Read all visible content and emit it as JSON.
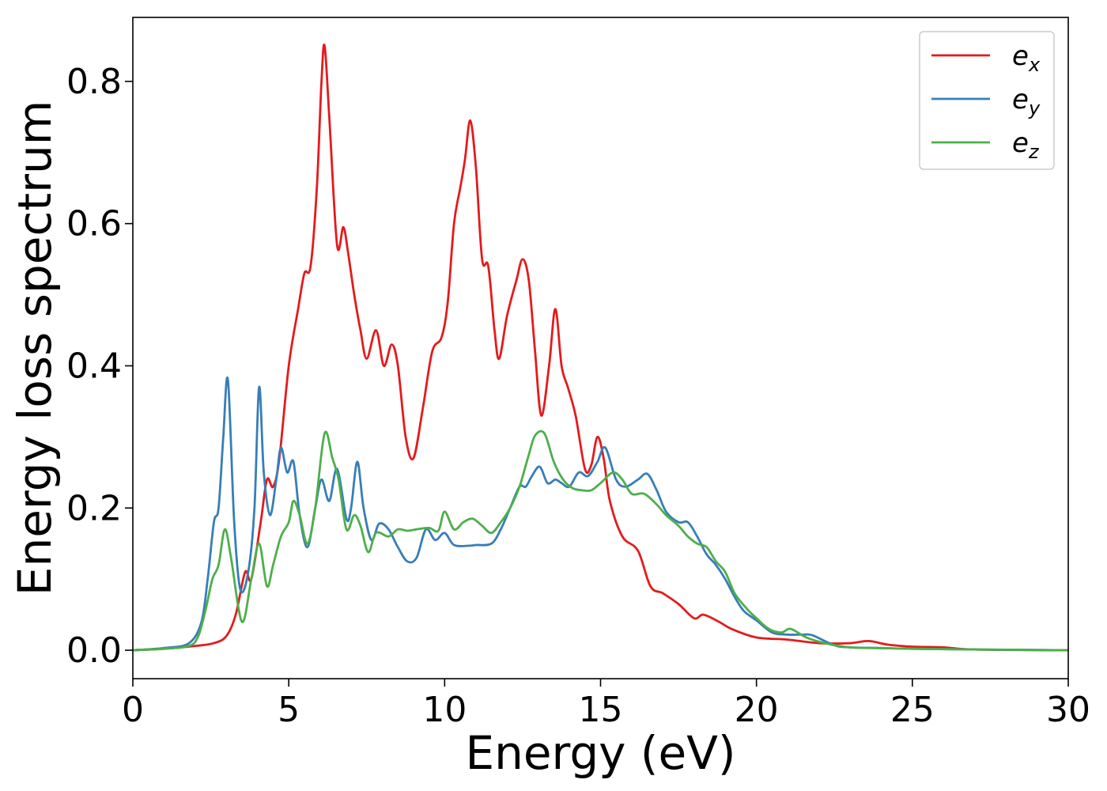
{
  "chart_data": {
    "type": "line",
    "title": "",
    "xlabel": "Energy (eV)",
    "ylabel": "Energy loss spectrum",
    "xlim": [
      0,
      30
    ],
    "ylim": [
      -0.04,
      0.89
    ],
    "xticks": [
      0,
      5,
      10,
      15,
      20,
      25,
      30
    ],
    "xtick_labels": [
      "0",
      "5",
      "10",
      "15",
      "20",
      "25",
      "30"
    ],
    "yticks": [
      0.0,
      0.2,
      0.4,
      0.6,
      0.8
    ],
    "ytick_labels": [
      "0.0",
      "0.2",
      "0.4",
      "0.6",
      "0.8"
    ],
    "grid": false,
    "legend_position": "top-right",
    "series": [
      {
        "name": "e",
        "sub": "x",
        "color": "#e41a1c",
        "points": [
          [
            0,
            0
          ],
          [
            1,
            0.002
          ],
          [
            2,
            0.006
          ],
          [
            2.6,
            0.01
          ],
          [
            3,
            0.02
          ],
          [
            3.3,
            0.05
          ],
          [
            3.6,
            0.11
          ],
          [
            3.8,
            0.1
          ],
          [
            4.1,
            0.18
          ],
          [
            4.3,
            0.24
          ],
          [
            4.5,
            0.23
          ],
          [
            4.7,
            0.27
          ],
          [
            5,
            0.4
          ],
          [
            5.3,
            0.48
          ],
          [
            5.5,
            0.53
          ],
          [
            5.7,
            0.54
          ],
          [
            5.9,
            0.65
          ],
          [
            6.05,
            0.8
          ],
          [
            6.15,
            0.85
          ],
          [
            6.3,
            0.75
          ],
          [
            6.55,
            0.57
          ],
          [
            6.75,
            0.595
          ],
          [
            6.9,
            0.56
          ],
          [
            7.1,
            0.5
          ],
          [
            7.3,
            0.45
          ],
          [
            7.5,
            0.41
          ],
          [
            7.8,
            0.45
          ],
          [
            8.05,
            0.4
          ],
          [
            8.3,
            0.43
          ],
          [
            8.5,
            0.4
          ],
          [
            8.75,
            0.3
          ],
          [
            9,
            0.27
          ],
          [
            9.3,
            0.34
          ],
          [
            9.6,
            0.42
          ],
          [
            9.9,
            0.44
          ],
          [
            10.1,
            0.49
          ],
          [
            10.3,
            0.6
          ],
          [
            10.5,
            0.65
          ],
          [
            10.65,
            0.69
          ],
          [
            10.82,
            0.745
          ],
          [
            11,
            0.68
          ],
          [
            11.2,
            0.55
          ],
          [
            11.4,
            0.54
          ],
          [
            11.6,
            0.45
          ],
          [
            11.75,
            0.41
          ],
          [
            12,
            0.47
          ],
          [
            12.3,
            0.52
          ],
          [
            12.5,
            0.55
          ],
          [
            12.7,
            0.52
          ],
          [
            12.9,
            0.42
          ],
          [
            13.1,
            0.33
          ],
          [
            13.35,
            0.4
          ],
          [
            13.55,
            0.48
          ],
          [
            13.75,
            0.4
          ],
          [
            13.95,
            0.37
          ],
          [
            14.2,
            0.33
          ],
          [
            14.5,
            0.255
          ],
          [
            14.7,
            0.26
          ],
          [
            14.9,
            0.3
          ],
          [
            15.1,
            0.27
          ],
          [
            15.3,
            0.21
          ],
          [
            15.7,
            0.16
          ],
          [
            16.2,
            0.14
          ],
          [
            16.6,
            0.09
          ],
          [
            17,
            0.08
          ],
          [
            17.5,
            0.065
          ],
          [
            18,
            0.045
          ],
          [
            18.3,
            0.05
          ],
          [
            18.8,
            0.04
          ],
          [
            19.2,
            0.03
          ],
          [
            20,
            0.018
          ],
          [
            21,
            0.015
          ],
          [
            22,
            0.01
          ],
          [
            23,
            0.01
          ],
          [
            23.6,
            0.013
          ],
          [
            24.2,
            0.008
          ],
          [
            25,
            0.005
          ],
          [
            26,
            0.004
          ],
          [
            27,
            0.001
          ],
          [
            30,
            0
          ]
        ]
      },
      {
        "name": "e",
        "sub": "y",
        "color": "#377eb8",
        "points": [
          [
            0,
            0
          ],
          [
            1,
            0.003
          ],
          [
            1.8,
            0.01
          ],
          [
            2.2,
            0.04
          ],
          [
            2.4,
            0.1
          ],
          [
            2.6,
            0.18
          ],
          [
            2.75,
            0.2
          ],
          [
            2.9,
            0.3
          ],
          [
            3.05,
            0.38
          ],
          [
            3.25,
            0.18
          ],
          [
            3.45,
            0.085
          ],
          [
            3.7,
            0.11
          ],
          [
            3.9,
            0.2
          ],
          [
            4.05,
            0.37
          ],
          [
            4.2,
            0.25
          ],
          [
            4.4,
            0.19
          ],
          [
            4.6,
            0.24
          ],
          [
            4.75,
            0.285
          ],
          [
            4.95,
            0.25
          ],
          [
            5.15,
            0.265
          ],
          [
            5.35,
            0.19
          ],
          [
            5.6,
            0.145
          ],
          [
            5.85,
            0.2
          ],
          [
            6.05,
            0.24
          ],
          [
            6.3,
            0.21
          ],
          [
            6.55,
            0.255
          ],
          [
            6.85,
            0.185
          ],
          [
            7,
            0.2
          ],
          [
            7.2,
            0.265
          ],
          [
            7.4,
            0.2
          ],
          [
            7.65,
            0.155
          ],
          [
            7.9,
            0.178
          ],
          [
            8.2,
            0.17
          ],
          [
            8.5,
            0.145
          ],
          [
            8.8,
            0.125
          ],
          [
            9.1,
            0.13
          ],
          [
            9.4,
            0.17
          ],
          [
            9.7,
            0.155
          ],
          [
            10,
            0.165
          ],
          [
            10.3,
            0.148
          ],
          [
            10.8,
            0.147
          ],
          [
            11,
            0.148
          ],
          [
            11.5,
            0.15
          ],
          [
            11.8,
            0.17
          ],
          [
            12.1,
            0.2
          ],
          [
            12.4,
            0.23
          ],
          [
            12.6,
            0.23
          ],
          [
            12.8,
            0.245
          ],
          [
            13.05,
            0.258
          ],
          [
            13.3,
            0.235
          ],
          [
            13.55,
            0.24
          ],
          [
            13.75,
            0.235
          ],
          [
            14,
            0.23
          ],
          [
            14.3,
            0.25
          ],
          [
            14.6,
            0.245
          ],
          [
            14.9,
            0.265
          ],
          [
            15.15,
            0.285
          ],
          [
            15.5,
            0.24
          ],
          [
            15.8,
            0.23
          ],
          [
            16.2,
            0.24
          ],
          [
            16.5,
            0.248
          ],
          [
            16.8,
            0.225
          ],
          [
            17.1,
            0.195
          ],
          [
            17.5,
            0.18
          ],
          [
            17.8,
            0.18
          ],
          [
            18.1,
            0.16
          ],
          [
            18.4,
            0.135
          ],
          [
            18.7,
            0.12
          ],
          [
            19,
            0.1
          ],
          [
            19.3,
            0.075
          ],
          [
            19.6,
            0.055
          ],
          [
            20,
            0.042
          ],
          [
            20.5,
            0.025
          ],
          [
            21,
            0.022
          ],
          [
            21.5,
            0.022
          ],
          [
            21.8,
            0.021
          ],
          [
            22.5,
            0.007
          ],
          [
            23,
            0.004
          ],
          [
            24,
            0.003
          ],
          [
            25,
            0.002
          ],
          [
            27,
            0.001
          ],
          [
            30,
            0
          ]
        ]
      },
      {
        "name": "e",
        "sub": "z",
        "color": "#4daf4a",
        "points": [
          [
            0,
            0
          ],
          [
            1,
            0.002
          ],
          [
            1.8,
            0.006
          ],
          [
            2.1,
            0.02
          ],
          [
            2.35,
            0.06
          ],
          [
            2.55,
            0.1
          ],
          [
            2.75,
            0.12
          ],
          [
            2.95,
            0.17
          ],
          [
            3.15,
            0.13
          ],
          [
            3.5,
            0.04
          ],
          [
            3.8,
            0.1
          ],
          [
            4.05,
            0.15
          ],
          [
            4.3,
            0.09
          ],
          [
            4.5,
            0.12
          ],
          [
            4.75,
            0.16
          ],
          [
            5,
            0.18
          ],
          [
            5.15,
            0.21
          ],
          [
            5.35,
            0.19
          ],
          [
            5.6,
            0.15
          ],
          [
            5.85,
            0.2
          ],
          [
            6.15,
            0.305
          ],
          [
            6.4,
            0.27
          ],
          [
            6.6,
            0.24
          ],
          [
            6.85,
            0.17
          ],
          [
            7.1,
            0.19
          ],
          [
            7.3,
            0.175
          ],
          [
            7.55,
            0.138
          ],
          [
            7.8,
            0.165
          ],
          [
            8.2,
            0.16
          ],
          [
            8.5,
            0.17
          ],
          [
            8.8,
            0.168
          ],
          [
            9.1,
            0.17
          ],
          [
            9.5,
            0.172
          ],
          [
            9.8,
            0.168
          ],
          [
            10,
            0.195
          ],
          [
            10.3,
            0.17
          ],
          [
            10.6,
            0.18
          ],
          [
            10.9,
            0.185
          ],
          [
            11.2,
            0.175
          ],
          [
            11.5,
            0.165
          ],
          [
            11.8,
            0.18
          ],
          [
            12.1,
            0.2
          ],
          [
            12.4,
            0.23
          ],
          [
            12.7,
            0.275
          ],
          [
            12.9,
            0.302
          ],
          [
            13.2,
            0.305
          ],
          [
            13.5,
            0.265
          ],
          [
            13.8,
            0.24
          ],
          [
            14.1,
            0.228
          ],
          [
            14.4,
            0.225
          ],
          [
            14.7,
            0.225
          ],
          [
            15,
            0.235
          ],
          [
            15.4,
            0.25
          ],
          [
            15.7,
            0.24
          ],
          [
            16,
            0.22
          ],
          [
            16.4,
            0.22
          ],
          [
            16.8,
            0.205
          ],
          [
            17.1,
            0.19
          ],
          [
            17.5,
            0.175
          ],
          [
            17.8,
            0.16
          ],
          [
            18.1,
            0.15
          ],
          [
            18.4,
            0.145
          ],
          [
            18.7,
            0.125
          ],
          [
            19,
            0.11
          ],
          [
            19.3,
            0.08
          ],
          [
            19.7,
            0.058
          ],
          [
            20,
            0.045
          ],
          [
            20.4,
            0.03
          ],
          [
            20.8,
            0.025
          ],
          [
            21.1,
            0.03
          ],
          [
            21.6,
            0.018
          ],
          [
            22.2,
            0.01
          ],
          [
            23,
            0.004
          ],
          [
            24,
            0.003
          ],
          [
            25,
            0.002
          ],
          [
            27,
            0.001
          ],
          [
            30,
            0
          ]
        ]
      }
    ]
  }
}
